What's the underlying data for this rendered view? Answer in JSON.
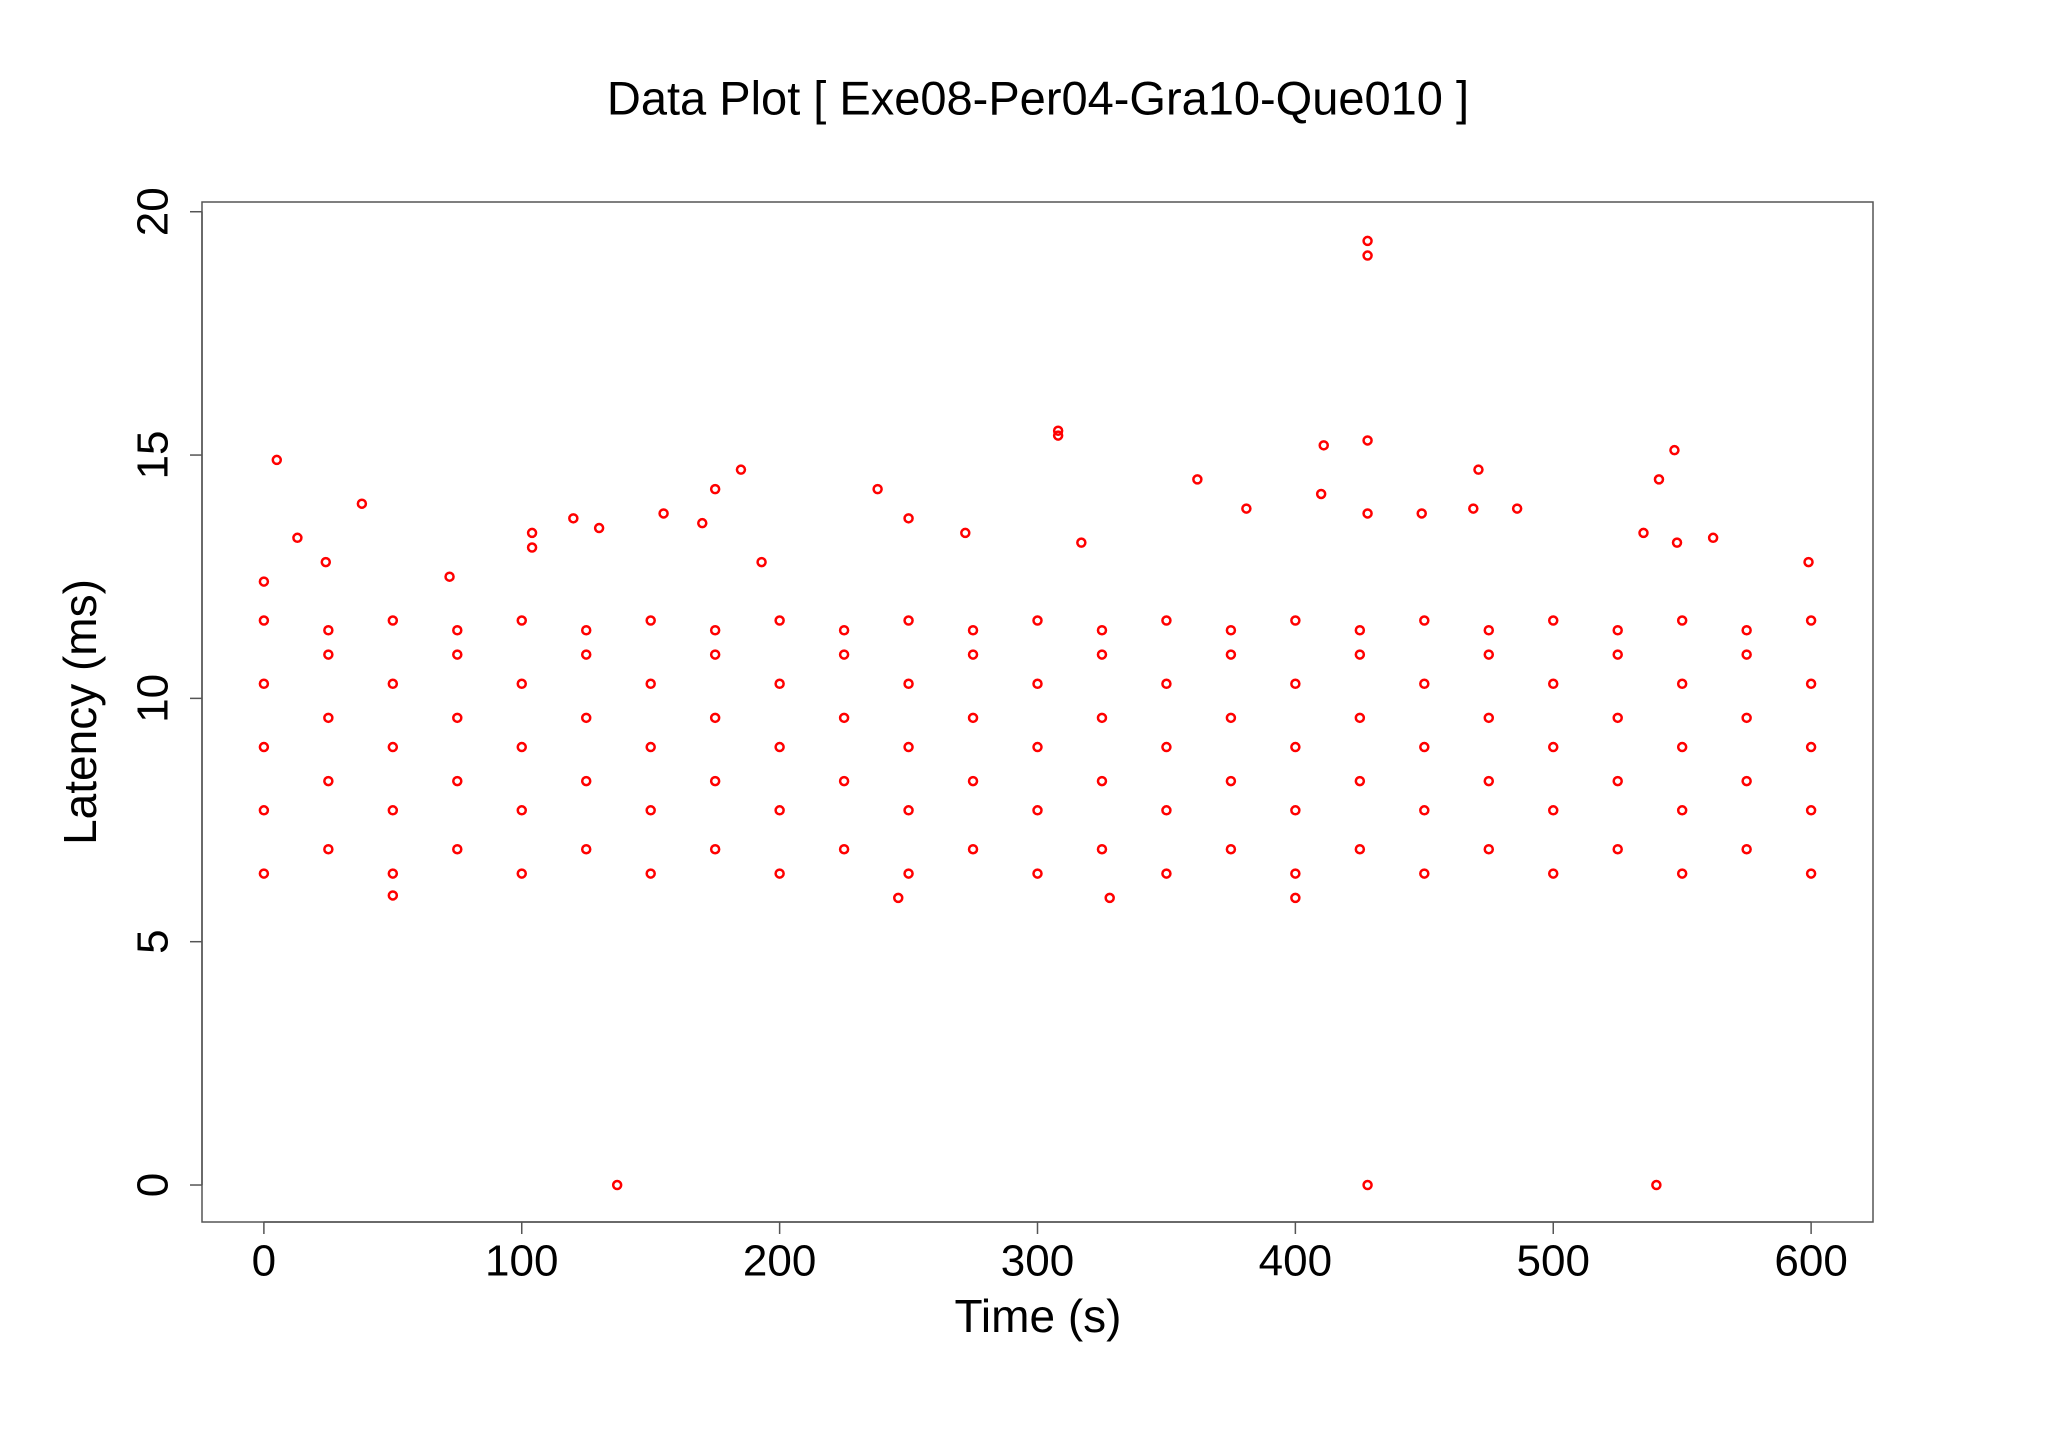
{
  "chart_data": {
    "type": "scatter",
    "title": "Data Plot [ Exe08-Per04-Gra10-Que010 ]",
    "x_label": "Time (s)",
    "y_label": "Latency (ms)",
    "color": "#ff0000",
    "xlim": [
      -24,
      624
    ],
    "ylim": [
      -0.76,
      20.2
    ],
    "xticks": [
      0,
      100,
      200,
      300,
      400,
      500,
      600
    ],
    "yticks": [
      0,
      5,
      10,
      15,
      20
    ],
    "x": [
      0,
      0,
      0,
      0,
      0,
      25,
      25,
      25,
      25,
      25,
      50,
      50,
      50,
      50,
      50,
      75,
      75,
      75,
      75,
      75,
      100,
      100,
      100,
      100,
      100,
      125,
      125,
      125,
      125,
      125,
      150,
      150,
      150,
      150,
      150,
      175,
      175,
      175,
      175,
      175,
      200,
      200,
      200,
      200,
      200,
      225,
      225,
      225,
      225,
      225,
      250,
      250,
      250,
      250,
      250,
      275,
      275,
      275,
      275,
      275,
      300,
      300,
      300,
      300,
      300,
      325,
      325,
      325,
      325,
      325,
      350,
      350,
      350,
      350,
      350,
      375,
      375,
      375,
      375,
      375,
      400,
      400,
      400,
      400,
      400,
      425,
      425,
      425,
      425,
      425,
      450,
      450,
      450,
      450,
      450,
      475,
      475,
      475,
      475,
      475,
      500,
      500,
      500,
      500,
      500,
      525,
      525,
      525,
      525,
      525,
      550,
      550,
      550,
      550,
      550,
      575,
      575,
      575,
      575,
      575,
      600,
      600,
      600,
      600,
      600,
      5,
      38,
      13,
      104,
      104,
      120,
      130,
      155,
      175,
      185,
      170,
      238,
      250,
      272,
      308,
      308,
      317,
      362,
      381,
      411,
      410,
      428,
      428,
      428,
      428,
      449,
      471,
      469,
      486,
      547,
      541,
      535,
      548,
      562,
      599,
      137,
      428,
      540,
      246,
      328,
      400,
      50,
      0,
      24,
      72,
      193
    ],
    "y": [
      6.4,
      7.7,
      9,
      10.3,
      11.6,
      6.9,
      8.3,
      9.6,
      10.9,
      11.4,
      6.4,
      7.7,
      9,
      10.3,
      11.6,
      6.9,
      8.3,
      9.6,
      10.9,
      11.4,
      6.4,
      7.7,
      9,
      10.3,
      11.6,
      6.9,
      8.3,
      9.6,
      10.9,
      11.4,
      6.4,
      7.7,
      9,
      10.3,
      11.6,
      6.9,
      8.3,
      9.6,
      10.9,
      11.4,
      6.4,
      7.7,
      9,
      10.3,
      11.6,
      6.9,
      8.3,
      9.6,
      10.9,
      11.4,
      6.4,
      7.7,
      9,
      10.3,
      11.6,
      6.9,
      8.3,
      9.6,
      10.9,
      11.4,
      6.4,
      7.7,
      9,
      10.3,
      11.6,
      6.9,
      8.3,
      9.6,
      10.9,
      11.4,
      6.4,
      7.7,
      9,
      10.3,
      11.6,
      6.9,
      8.3,
      9.6,
      10.9,
      11.4,
      6.4,
      7.7,
      9,
      10.3,
      11.6,
      6.9,
      8.3,
      9.6,
      10.9,
      11.4,
      6.4,
      7.7,
      9,
      10.3,
      11.6,
      6.9,
      8.3,
      9.6,
      10.9,
      11.4,
      6.4,
      7.7,
      9,
      10.3,
      11.6,
      6.9,
      8.3,
      9.6,
      10.9,
      11.4,
      6.4,
      7.7,
      9,
      10.3,
      11.6,
      6.9,
      8.3,
      9.6,
      10.9,
      11.4,
      6.4,
      7.7,
      9,
      10.3,
      11.6,
      14.9,
      14,
      13.3,
      13.4,
      13.1,
      13.7,
      13.5,
      13.8,
      14.3,
      14.7,
      13.6,
      14.3,
      13.7,
      13.4,
      15.5,
      15.4,
      13.2,
      14.5,
      13.9,
      15.2,
      14.2,
      19.4,
      19.1,
      15.3,
      13.8,
      13.8,
      14.7,
      13.9,
      13.9,
      15.1,
      14.5,
      13.4,
      13.2,
      13.3,
      12.8,
      0,
      0,
      0,
      5.9,
      5.9,
      5.9,
      5.95,
      12.4,
      12.8,
      12.5,
      12.8
    ]
  }
}
